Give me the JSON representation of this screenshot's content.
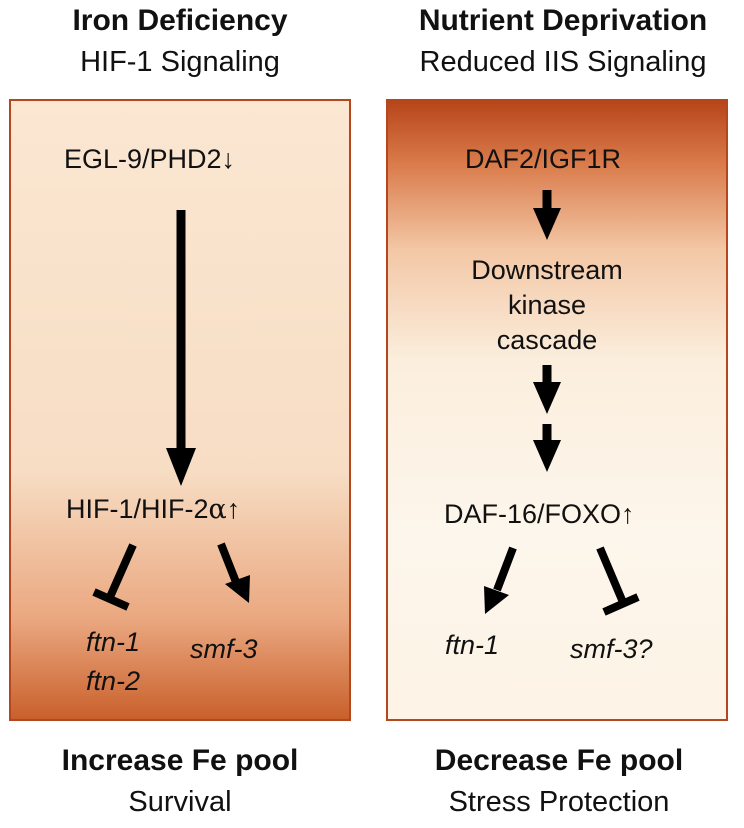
{
  "left": {
    "title": "Iron Deficiency",
    "subtitle": "HIF-1 Signaling",
    "node_top": "EGL-9/PHD2↓",
    "node_mid_pre": "HIF-1/HIF-2",
    "node_mid_alpha": "α",
    "node_mid_arrow": "↑",
    "gene_inhibited_1": "ftn-1",
    "gene_inhibited_2": "ftn-2",
    "gene_activated": "smf-3",
    "footer_title": "Increase Fe pool",
    "footer_subtitle": "Survival"
  },
  "right": {
    "title": "Nutrient Deprivation",
    "subtitle": "Reduced IIS Signaling",
    "node_top": "DAF2/IGF1R",
    "node_cascade_1": "Downstream",
    "node_cascade_2": "kinase",
    "node_cascade_3": "cascade",
    "node_bottom": "DAF-16/FOXO↑",
    "gene_activated": "ftn-1",
    "gene_inhibited": "smf-3?",
    "footer_title": "Decrease Fe pool",
    "footer_subtitle": "Stress Protection"
  },
  "colors": {
    "border": "#b4471e",
    "gradient_dark": "#c9602c",
    "gradient_light": "#fbe7d2",
    "text": "#111111"
  }
}
